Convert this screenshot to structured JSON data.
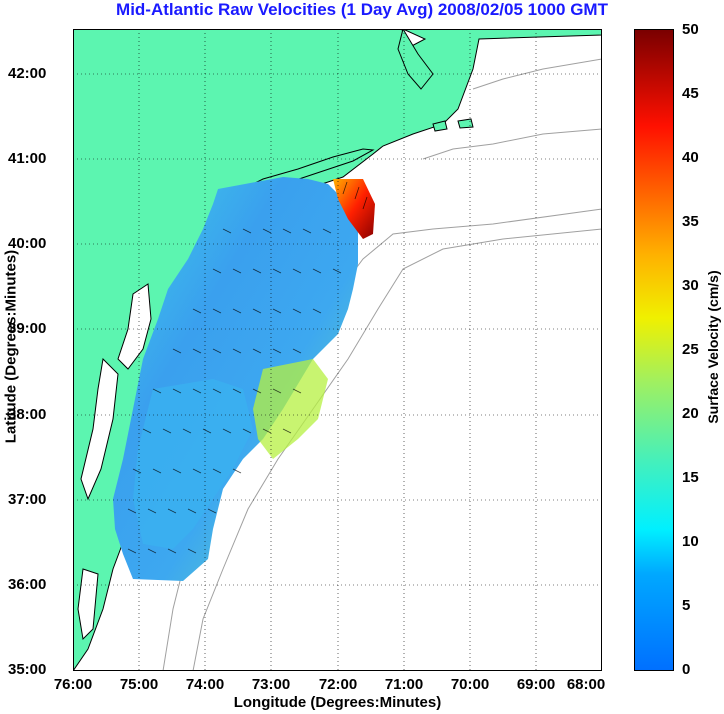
{
  "title": "Mid-Atlantic Raw Velocities (1 Day Avg) 2008/02/05 1000 GMT",
  "xlabel": "Longitude (Degrees:Minutes)",
  "ylabel": "Latitude (Degrees:Minutes)",
  "colorbar_label": "Surface Velocity (cm/s)",
  "x_ticks": [
    "76:00",
    "75:00",
    "74:00",
    "73:00",
    "72:00",
    "71:00",
    "70:00",
    "69:00",
    "68:00"
  ],
  "y_ticks": [
    "42:00",
    "41:00",
    "40:00",
    "39:00",
    "38:00",
    "37:00",
    "36:00",
    "35:00"
  ],
  "colorbar_ticks": [
    "50",
    "45",
    "40",
    "35",
    "30",
    "25",
    "20",
    "15",
    "10",
    "5",
    "0"
  ],
  "colors": {
    "land": "#5cf5b0",
    "title": "#1a1aff",
    "coast": "#000000",
    "bathymetry": "#a0a0a0"
  },
  "map": {
    "lon_range": [
      -76,
      -68
    ],
    "lat_range": [
      35,
      42.5
    ],
    "colorbar_range": [
      0,
      50
    ],
    "grid": true
  }
}
